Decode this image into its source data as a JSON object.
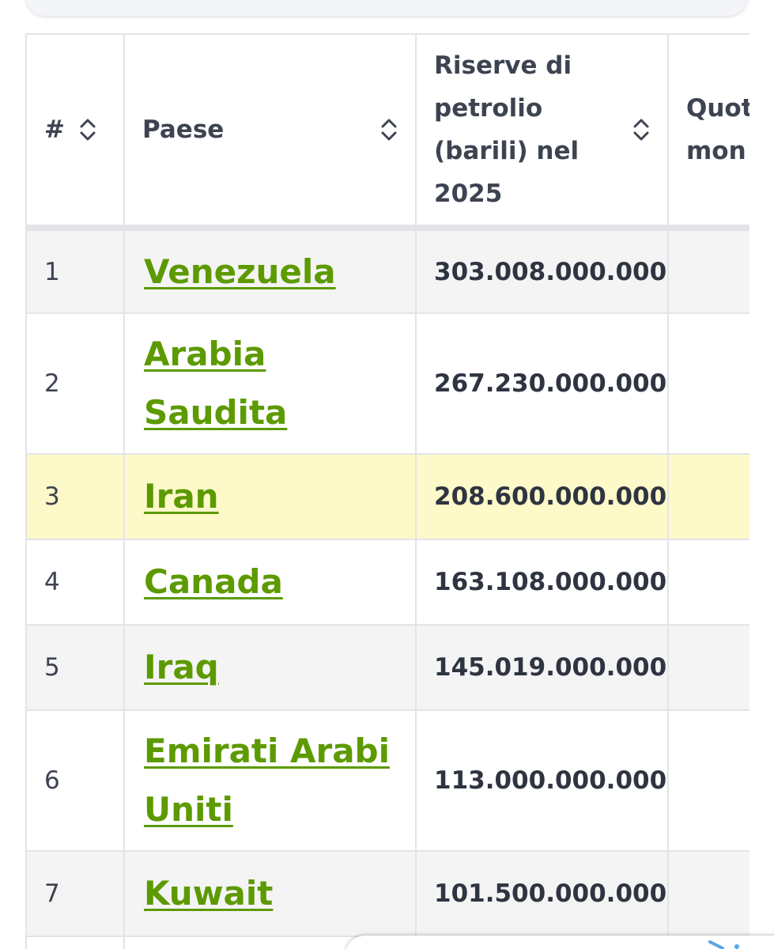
{
  "table": {
    "columns": {
      "num": "#",
      "country": "Paese",
      "reserves": "Riserve di petrolio (barili) nel 2025",
      "share": "Quota mon"
    },
    "rows": [
      {
        "num": "1",
        "country": "Venezuela",
        "reserves": "303.008.000.000"
      },
      {
        "num": "2",
        "country": "Arabia Saudita",
        "reserves": "267.230.000.000"
      },
      {
        "num": "3",
        "country": "Iran",
        "reserves": "208.600.000.000"
      },
      {
        "num": "4",
        "country": "Canada",
        "reserves": "163.108.000.000"
      },
      {
        "num": "5",
        "country": "Iraq",
        "reserves": "145.019.000.000"
      },
      {
        "num": "6",
        "country": "Emirati Arabi Uniti",
        "reserves": "113.000.000.000"
      },
      {
        "num": "7",
        "country": "Kuwait",
        "reserves": "101.500.000.000"
      }
    ],
    "highlighted_row": "3"
  },
  "icons": {
    "sort": "sort-updown-icon"
  },
  "colors": {
    "link": "#5c9a00",
    "highlight": "#fdf9c8",
    "header_text": "#3d4351",
    "border": "#e3e4e8"
  }
}
